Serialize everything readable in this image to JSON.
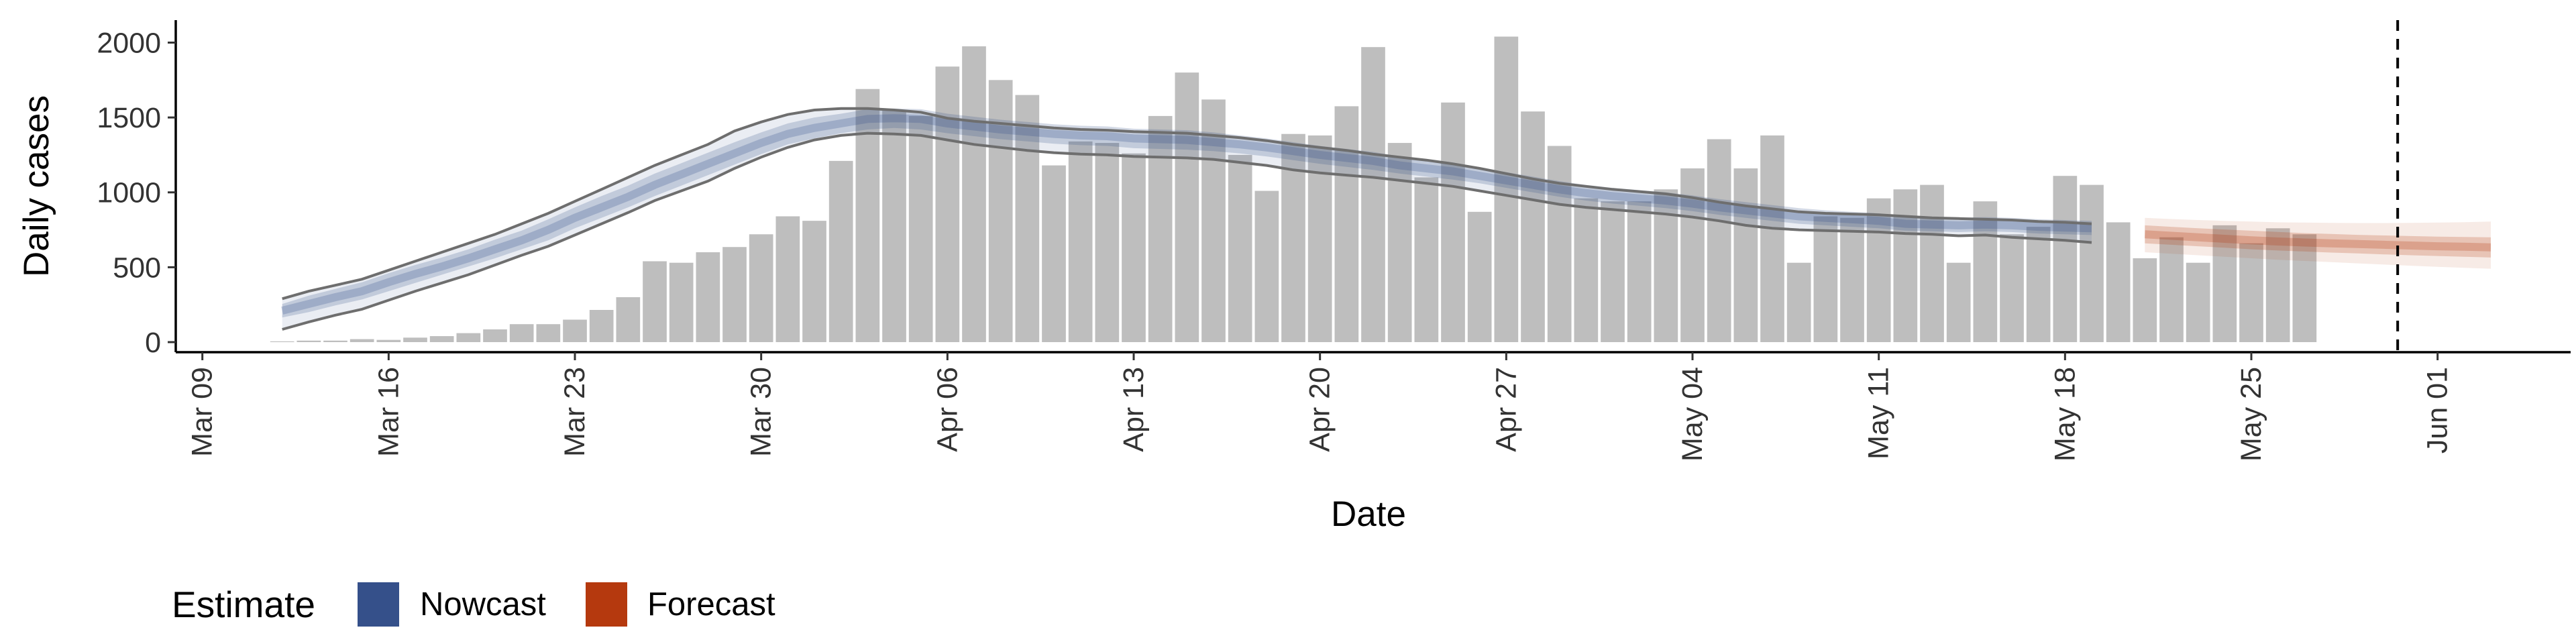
{
  "chart_data": {
    "type": "bar",
    "xlabel": "Date",
    "ylabel": "Daily cases",
    "ylim": [
      0,
      2150
    ],
    "y_ticks": [
      0,
      500,
      1000,
      1500,
      2000
    ],
    "x_tick_dates": [
      "2020-03-09",
      "2020-03-16",
      "2020-03-23",
      "2020-03-30",
      "2020-04-06",
      "2020-04-13",
      "2020-04-20",
      "2020-04-27",
      "2020-05-04",
      "2020-05-11",
      "2020-05-18",
      "2020-05-25",
      "2020-06-01"
    ],
    "x_tick_labels": [
      "Mar 09",
      "Mar 16",
      "Mar 23",
      "Mar 30",
      "Apr 06",
      "Apr 13",
      "Apr 20",
      "Apr 27",
      "May 04",
      "May 11",
      "May 18",
      "May 25",
      "Jun 01"
    ],
    "x_range": [
      "2020-03-08",
      "2020-06-06"
    ],
    "grid": false,
    "cases_start_date": "2020-03-12",
    "cases": [
      5,
      10,
      10,
      20,
      15,
      30,
      40,
      60,
      85,
      120,
      120,
      150,
      215,
      300,
      540,
      530,
      600,
      635,
      720,
      840,
      810,
      1210,
      1690,
      1550,
      1510,
      1840,
      1975,
      1750,
      1650,
      1180,
      1340,
      1330,
      1260,
      1510,
      1800,
      1620,
      1250,
      1010,
      1390,
      1380,
      1575,
      1970,
      1330,
      1100,
      1600,
      870,
      2040,
      1540,
      1310,
      960,
      940,
      940,
      1020,
      1160,
      1355,
      1160,
      1380,
      530,
      840,
      830,
      960,
      1020,
      1050,
      530,
      940,
      720,
      770,
      1110,
      1050,
      800,
      560,
      700,
      530,
      780,
      660,
      760,
      720
    ],
    "estimates": [
      {
        "name": "Nowcast",
        "color": "#35508a",
        "start_date": "2020-03-12",
        "median": [
          210,
          255,
          300,
          340,
          400,
          455,
          505,
          560,
          620,
          680,
          750,
          830,
          900,
          970,
          1050,
          1120,
          1190,
          1260,
          1330,
          1390,
          1430,
          1460,
          1490,
          1495,
          1490,
          1460,
          1440,
          1420,
          1405,
          1390,
          1380,
          1375,
          1360,
          1355,
          1350,
          1335,
          1320,
          1300,
          1275,
          1250,
          1230,
          1210,
          1180,
          1160,
          1140,
          1110,
          1080,
          1050,
          1020,
          995,
          975,
          960,
          945,
          925,
          900,
          880,
          860,
          840,
          830,
          820,
          810,
          790,
          785,
          780,
          785,
          780,
          770,
          765,
          760
        ],
        "inner_low": [
          165,
          200,
          245,
          285,
          340,
          395,
          450,
          505,
          560,
          620,
          680,
          760,
          830,
          900,
          975,
          1045,
          1115,
          1185,
          1255,
          1320,
          1360,
          1395,
          1420,
          1430,
          1420,
          1395,
          1375,
          1355,
          1340,
          1325,
          1315,
          1310,
          1295,
          1290,
          1285,
          1275,
          1260,
          1240,
          1215,
          1190,
          1170,
          1150,
          1125,
          1105,
          1085,
          1060,
          1030,
          1000,
          970,
          945,
          925,
          910,
          895,
          875,
          850,
          830,
          810,
          790,
          780,
          770,
          760,
          745,
          740,
          735,
          740,
          735,
          725,
          720,
          715
        ],
        "inner_high": [
          255,
          310,
          355,
          400,
          460,
          515,
          565,
          620,
          685,
          745,
          820,
          900,
          975,
          1045,
          1125,
          1195,
          1265,
          1335,
          1400,
          1460,
          1500,
          1525,
          1555,
          1560,
          1555,
          1525,
          1505,
          1485,
          1470,
          1455,
          1445,
          1440,
          1425,
          1420,
          1415,
          1400,
          1380,
          1360,
          1335,
          1310,
          1290,
          1270,
          1240,
          1220,
          1200,
          1165,
          1135,
          1105,
          1075,
          1050,
          1030,
          1015,
          1000,
          980,
          955,
          935,
          915,
          895,
          880,
          870,
          860,
          840,
          835,
          830,
          835,
          830,
          820,
          815,
          810
        ],
        "outer_low": [
          85,
          135,
          180,
          220,
          280,
          340,
          395,
          450,
          515,
          580,
          640,
          715,
          790,
          865,
          945,
          1010,
          1075,
          1160,
          1235,
          1300,
          1350,
          1380,
          1395,
          1390,
          1380,
          1350,
          1320,
          1300,
          1280,
          1265,
          1255,
          1250,
          1240,
          1235,
          1230,
          1220,
          1200,
          1180,
          1150,
          1130,
          1115,
          1100,
          1080,
          1060,
          1040,
          1010,
          980,
          950,
          920,
          900,
          885,
          870,
          855,
          835,
          810,
          780,
          760,
          750,
          745,
          740,
          735,
          725,
          720,
          710,
          715,
          700,
          690,
          680,
          665
        ],
        "outer_high": [
          290,
          340,
          380,
          420,
          480,
          540,
          600,
          660,
          720,
          790,
          860,
          940,
          1020,
          1100,
          1180,
          1250,
          1320,
          1410,
          1470,
          1520,
          1550,
          1560,
          1560,
          1550,
          1535,
          1495,
          1475,
          1460,
          1445,
          1430,
          1420,
          1415,
          1405,
          1400,
          1395,
          1380,
          1365,
          1345,
          1320,
          1300,
          1280,
          1255,
          1235,
          1215,
          1190,
          1160,
          1125,
          1090,
          1060,
          1040,
          1020,
          1005,
          990,
          965,
          935,
          910,
          890,
          870,
          860,
          855,
          850,
          840,
          830,
          825,
          820,
          815,
          805,
          800,
          790
        ]
      },
      {
        "name": "Forecast",
        "color": "#b5390e",
        "start_date": "2020-05-21",
        "median": [
          720,
          710,
          700,
          690,
          680,
          672,
          665,
          660,
          655,
          650,
          645,
          640,
          637,
          633
        ],
        "inner_low": [
          660,
          650,
          640,
          630,
          620,
          612,
          605,
          598,
          592,
          586,
          580,
          575,
          570,
          565
        ],
        "inner_high": [
          780,
          770,
          760,
          752,
          744,
          736,
          728,
          722,
          716,
          712,
          708,
          704,
          702,
          700
        ],
        "outer_low": [
          600,
          590,
          580,
          570,
          560,
          550,
          542,
          534,
          526,
          518,
          510,
          503,
          496,
          490
        ],
        "outer_high": [
          830,
          822,
          815,
          810,
          805,
          800,
          798,
          796,
          795,
          795,
          796,
          798,
          801,
          805
        ]
      }
    ],
    "bar_color": "#bebebe",
    "line_color": "#6e6e6e",
    "vline_date": "2020-05-30",
    "legend": {
      "title": "Estimate",
      "position": "bottom-left",
      "items": [
        {
          "label": "Nowcast",
          "color": "#35508a"
        },
        {
          "label": "Forecast",
          "color": "#b5390e"
        }
      ]
    }
  }
}
